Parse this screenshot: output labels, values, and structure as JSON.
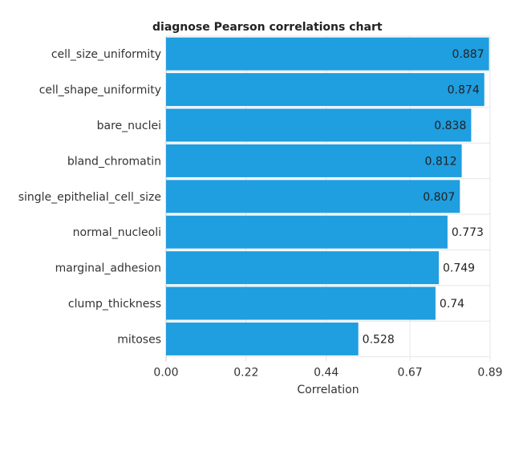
{
  "chart_data": {
    "type": "bar",
    "orientation": "horizontal",
    "title": "diagnose Pearson correlations chart",
    "xlabel": "Correlation",
    "ylabel": "",
    "categories": [
      "cell_size_uniformity",
      "cell_shape_uniformity",
      "bare_nuclei",
      "bland_chromatin",
      "single_epithelial_cell_size",
      "normal_nucleoli",
      "marginal_adhesion",
      "clump_thickness",
      "mitoses"
    ],
    "values": [
      0.887,
      0.874,
      0.838,
      0.812,
      0.807,
      0.773,
      0.749,
      0.74,
      0.528
    ],
    "data_labels": [
      "0.887",
      "0.874",
      "0.838",
      "0.812",
      "0.807",
      "0.773",
      "0.749",
      "0.74",
      "0.528"
    ],
    "xlim": [
      0,
      0.89
    ],
    "x_ticks": [
      0,
      0.22,
      0.44,
      0.67,
      0.89
    ],
    "x_tick_labels": [
      "0.00",
      "0.22",
      "0.44",
      "0.67",
      "0.89"
    ],
    "grid": true,
    "legend": "none",
    "bar_color": "#1f9ee0"
  }
}
